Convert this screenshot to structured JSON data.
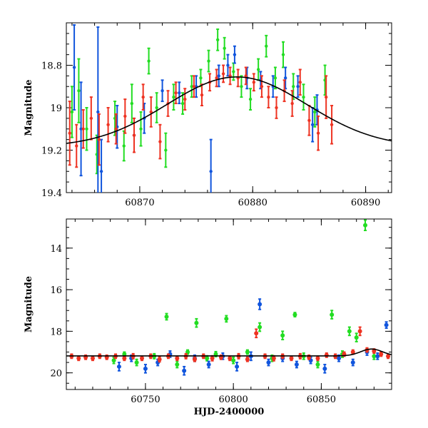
{
  "colors": {
    "g": "#22dd22",
    "b": "#1155dd",
    "r": "#ee3322",
    "model": "#000000"
  },
  "chart_data": [
    {
      "type": "scatter",
      "title": "",
      "xlabel": "",
      "ylabel": "Magnitude",
      "xlim": [
        60863.5,
        60892.3
      ],
      "ylim": [
        19.4,
        18.6
      ],
      "y_inverted": true,
      "xticks": [
        60870,
        60880,
        60890
      ],
      "yticks": [
        18.8,
        19,
        19.2,
        19.4
      ],
      "xtick_labels": [
        "60870",
        "60880",
        "60890"
      ],
      "ytick_labels": [
        "18.8",
        "19",
        "19.2",
        "19.4"
      ],
      "model_curve": {
        "peak_x": 60878.6,
        "peak_mag": 18.855,
        "base_mag": 19.185,
        "width": 6.2
      },
      "series": [
        {
          "color": "g",
          "points": [
            [
              60864.0,
              19.02,
              0.12
            ],
            [
              60864.6,
              18.92,
              0.15
            ],
            [
              60865.3,
              19.1,
              0.1
            ],
            [
              60866.2,
              19.22,
              0.09
            ],
            [
              60867.8,
              19.05,
              0.08
            ],
            [
              60868.6,
              19.18,
              0.07
            ],
            [
              60869.3,
              18.98,
              0.09
            ],
            [
              60870.1,
              19.1,
              0.08
            ],
            [
              60870.8,
              18.78,
              0.06
            ],
            [
              60871.5,
              19.0,
              0.07
            ],
            [
              60872.3,
              19.2,
              0.08
            ],
            [
              60873.0,
              18.95,
              0.06
            ],
            [
              60873.8,
              18.98,
              0.05
            ],
            [
              60874.6,
              18.9,
              0.05
            ],
            [
              60875.4,
              18.86,
              0.04
            ],
            [
              60876.1,
              18.78,
              0.05
            ],
            [
              60876.9,
              18.68,
              0.05
            ],
            [
              60877.5,
              18.72,
              0.05
            ],
            [
              60878.3,
              18.83,
              0.04
            ],
            [
              60879.0,
              18.9,
              0.05
            ],
            [
              60879.8,
              18.96,
              0.05
            ],
            [
              60880.5,
              18.82,
              0.05
            ],
            [
              60881.2,
              18.71,
              0.05
            ],
            [
              60882.0,
              18.86,
              0.05
            ],
            [
              60882.7,
              18.75,
              0.06
            ],
            [
              60883.6,
              18.9,
              0.06
            ],
            [
              60884.5,
              18.95,
              0.06
            ],
            [
              60885.5,
              19.02,
              0.07
            ],
            [
              60886.4,
              18.87,
              0.07
            ]
          ]
        },
        {
          "color": "b",
          "points": [
            [
              60864.2,
              18.81,
              0.2
            ],
            [
              60864.8,
              19.1,
              0.22
            ],
            [
              60866.3,
              19.02,
              0.4
            ],
            [
              60866.6,
              19.3,
              0.15
            ],
            [
              60868.0,
              19.09,
              0.1
            ],
            [
              60869.5,
              19.13,
              0.08
            ],
            [
              60870.4,
              19.05,
              0.07
            ],
            [
              60872.0,
              18.92,
              0.05
            ],
            [
              60873.5,
              18.93,
              0.05
            ],
            [
              60875.0,
              18.9,
              0.05
            ],
            [
              60876.3,
              19.3,
              0.15
            ],
            [
              60877.0,
              18.85,
              0.05
            ],
            [
              60877.8,
              18.8,
              0.05
            ],
            [
              60878.4,
              18.75,
              0.04
            ],
            [
              60879.5,
              18.86,
              0.05
            ],
            [
              60880.7,
              18.87,
              0.04
            ],
            [
              60881.8,
              18.9,
              0.05
            ],
            [
              60882.9,
              18.86,
              0.05
            ],
            [
              60884.0,
              18.9,
              0.05
            ],
            [
              60885.3,
              19.08,
              0.08
            ],
            [
              60885.7,
              19.01,
              0.07
            ]
          ]
        },
        {
          "color": "r",
          "points": [
            [
              60863.8,
              19.12,
              0.15
            ],
            [
              60864.4,
              19.18,
              0.1
            ],
            [
              60865.0,
              19.1,
              0.09
            ],
            [
              60865.7,
              19.05,
              0.1
            ],
            [
              60866.4,
              19.15,
              0.12
            ],
            [
              60867.2,
              19.08,
              0.08
            ],
            [
              60867.9,
              19.1,
              0.07
            ],
            [
              60868.7,
              19.04,
              0.08
            ],
            [
              60869.5,
              19.13,
              0.08
            ],
            [
              60870.3,
              18.95,
              0.06
            ],
            [
              60871.0,
              19.02,
              0.07
            ],
            [
              60871.8,
              19.16,
              0.08
            ],
            [
              60872.5,
              18.98,
              0.06
            ],
            [
              60873.2,
              18.93,
              0.05
            ],
            [
              60874.0,
              18.96,
              0.05
            ],
            [
              60874.8,
              18.9,
              0.05
            ],
            [
              60875.5,
              18.94,
              0.05
            ],
            [
              60876.2,
              18.88,
              0.04
            ],
            [
              60876.8,
              18.86,
              0.04
            ],
            [
              60877.4,
              18.84,
              0.04
            ],
            [
              60878.0,
              18.85,
              0.04
            ],
            [
              60878.7,
              18.86,
              0.04
            ],
            [
              60879.4,
              18.85,
              0.04
            ],
            [
              60880.1,
              18.88,
              0.04
            ],
            [
              60880.8,
              18.9,
              0.05
            ],
            [
              60881.4,
              18.95,
              0.05
            ],
            [
              60882.1,
              19.0,
              0.05
            ],
            [
              60882.8,
              18.92,
              0.05
            ],
            [
              60883.5,
              18.98,
              0.06
            ],
            [
              60884.2,
              18.88,
              0.06
            ],
            [
              60885.0,
              19.06,
              0.07
            ],
            [
              60885.8,
              19.12,
              0.08
            ],
            [
              60886.5,
              18.95,
              0.1
            ],
            [
              60887.0,
              19.08,
              0.09
            ]
          ]
        }
      ]
    },
    {
      "type": "scatter",
      "title": "",
      "xlabel": "HJD-2400000",
      "ylabel": "Magnitude",
      "xlim": [
        60705,
        60890
      ],
      "ylim": [
        20.8,
        12.6
      ],
      "y_inverted": true,
      "xticks": [
        60750,
        60800,
        60850
      ],
      "yticks": [
        14,
        16,
        18,
        20
      ],
      "xtick_labels": [
        "60750",
        "60800",
        "60850"
      ],
      "ytick_labels": [
        "14",
        "16",
        "18",
        "20"
      ],
      "model_curve": {
        "peak_x": 60878.6,
        "peak_mag": 18.855,
        "base_mag": 19.185,
        "width": 6.2
      },
      "series": [
        {
          "color": "g",
          "points": [
            [
              60732,
              19.4,
              0.15
            ],
            [
              60738,
              19.1,
              0.1
            ],
            [
              60745,
              19.5,
              0.15
            ],
            [
              60755,
              19.2,
              0.12
            ],
            [
              60762,
              17.3,
              0.15
            ],
            [
              60768,
              19.6,
              0.15
            ],
            [
              60774,
              19.0,
              0.1
            ],
            [
              60779,
              17.6,
              0.2
            ],
            [
              60785,
              19.3,
              0.12
            ],
            [
              60790,
              19.1,
              0.12
            ],
            [
              60796,
              17.4,
              0.15
            ],
            [
              60800,
              19.4,
              0.15
            ],
            [
              60808,
              19.0,
              0.1
            ],
            [
              60815,
              17.8,
              0.2
            ],
            [
              60822,
              19.3,
              0.15
            ],
            [
              60828,
              18.2,
              0.2
            ],
            [
              60835,
              17.2,
              0.1
            ],
            [
              60840,
              19.2,
              0.15
            ],
            [
              60848,
              19.6,
              0.15
            ],
            [
              60856,
              17.2,
              0.2
            ],
            [
              60862,
              19.1,
              0.15
            ],
            [
              60866,
              18.0,
              0.2
            ],
            [
              60870,
              18.3,
              0.2
            ],
            [
              60875,
              12.9,
              0.25
            ],
            [
              60880,
              19.2,
              0.15
            ]
          ]
        },
        {
          "color": "b",
          "points": [
            [
              60735,
              19.7,
              0.2
            ],
            [
              60742,
              19.3,
              0.15
            ],
            [
              60750,
              19.8,
              0.2
            ],
            [
              60757,
              19.5,
              0.15
            ],
            [
              60764,
              19.1,
              0.15
            ],
            [
              60772,
              19.9,
              0.2
            ],
            [
              60778,
              19.3,
              0.15
            ],
            [
              60786,
              19.6,
              0.15
            ],
            [
              60794,
              19.2,
              0.15
            ],
            [
              60802,
              19.7,
              0.2
            ],
            [
              60810,
              19.2,
              0.2
            ],
            [
              60815,
              16.7,
              0.25
            ],
            [
              60820,
              19.5,
              0.15
            ],
            [
              60828,
              19.3,
              0.15
            ],
            [
              60836,
              19.6,
              0.15
            ],
            [
              60844,
              19.4,
              0.15
            ],
            [
              60852,
              19.8,
              0.2
            ],
            [
              60860,
              19.3,
              0.15
            ],
            [
              60868,
              19.5,
              0.15
            ],
            [
              60876,
              19.0,
              0.15
            ],
            [
              60882,
              19.2,
              0.15
            ],
            [
              60887,
              17.7,
              0.15
            ]
          ]
        },
        {
          "color": "r",
          "points": [
            [
              60708,
              19.2,
              0.1
            ],
            [
              60712,
              19.3,
              0.1
            ],
            [
              60716,
              19.25,
              0.1
            ],
            [
              60720,
              19.3,
              0.1
            ],
            [
              60724,
              19.2,
              0.1
            ],
            [
              60728,
              19.25,
              0.1
            ],
            [
              60733,
              19.2,
              0.1
            ],
            [
              60738,
              19.3,
              0.1
            ],
            [
              60743,
              19.2,
              0.12
            ],
            [
              60748,
              19.3,
              0.1
            ],
            [
              60753,
              19.2,
              0.1
            ],
            [
              60758,
              19.35,
              0.12
            ],
            [
              60763,
              19.2,
              0.1
            ],
            [
              60768,
              19.3,
              0.1
            ],
            [
              60773,
              19.2,
              0.12
            ],
            [
              60778,
              19.35,
              0.1
            ],
            [
              60783,
              19.2,
              0.1
            ],
            [
              60788,
              19.3,
              0.12
            ],
            [
              60793,
              19.25,
              0.1
            ],
            [
              60798,
              19.3,
              0.1
            ],
            [
              60803,
              19.2,
              0.12
            ],
            [
              60808,
              19.35,
              0.1
            ],
            [
              60813,
              18.1,
              0.2
            ],
            [
              60818,
              19.2,
              0.1
            ],
            [
              60823,
              19.3,
              0.12
            ],
            [
              60828,
              19.2,
              0.1
            ],
            [
              60833,
              19.3,
              0.1
            ],
            [
              60838,
              19.2,
              0.12
            ],
            [
              60843,
              19.25,
              0.1
            ],
            [
              60848,
              19.3,
              0.1
            ],
            [
              60853,
              19.15,
              0.1
            ],
            [
              60858,
              19.2,
              0.1
            ],
            [
              60863,
              19.1,
              0.1
            ],
            [
              60868,
              19.0,
              0.1
            ],
            [
              60872,
              18.0,
              0.2
            ],
            [
              60876,
              18.9,
              0.1
            ],
            [
              60880,
              18.95,
              0.1
            ],
            [
              60884,
              19.1,
              0.1
            ],
            [
              60888,
              19.2,
              0.1
            ]
          ]
        }
      ]
    }
  ]
}
